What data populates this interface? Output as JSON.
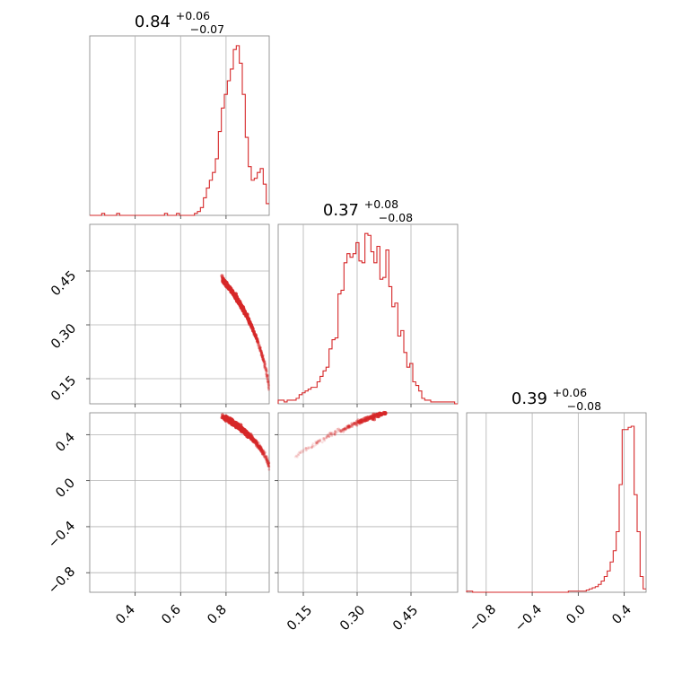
{
  "chart_data": {
    "type": "corner",
    "color": "#d62728",
    "grid": true,
    "parameters": [
      {
        "id": "p0",
        "range": [
          0.2,
          0.99
        ],
        "ticks": [
          0.4,
          0.6,
          0.8
        ],
        "tick_labels": [
          "0.4",
          "0.6",
          "0.8"
        ],
        "title": {
          "median": "0.84",
          "plus": "+0.06",
          "minus": "−0.07"
        },
        "hist": {
          "edges": [
            0.2,
            0.21316,
            0.22633,
            0.2395,
            0.25266,
            0.26583,
            0.279,
            0.29216,
            0.30533,
            0.3185,
            0.33166,
            0.34483,
            0.358,
            0.37116,
            0.38433,
            0.3975,
            0.41066,
            0.42383,
            0.437,
            0.45016,
            0.46333,
            0.4765,
            0.48966,
            0.50283,
            0.516,
            0.52916,
            0.54233,
            0.5555,
            0.56866,
            0.58183,
            0.595,
            0.60816,
            0.62133,
            0.6345,
            0.64766,
            0.66083,
            0.674,
            0.68716,
            0.70033,
            0.7135,
            0.72666,
            0.73983,
            0.753,
            0.76616,
            0.77933,
            0.7925,
            0.80566,
            0.81883,
            0.832,
            0.84516,
            0.85833,
            0.8715,
            0.88466,
            0.89783,
            0.911,
            0.92416,
            0.93733,
            0.9505,
            0.96366,
            0.97683,
            0.99
          ],
          "counts": [
            0,
            0,
            0,
            0,
            1,
            0,
            0,
            0,
            0,
            1,
            0,
            0,
            0,
            0,
            0,
            0,
            0,
            0,
            0,
            0,
            0,
            0,
            0,
            0,
            0,
            1,
            0,
            0,
            0,
            1,
            0,
            0,
            0,
            0,
            0,
            1,
            2,
            4,
            9,
            14,
            18,
            22,
            29,
            43,
            55,
            62,
            69,
            75,
            85,
            87,
            78,
            62,
            40,
            25,
            18,
            19,
            22,
            24,
            16,
            6
          ],
          "ymax": 92
        }
      },
      {
        "id": "p1",
        "range": [
          0.08,
          0.58
        ],
        "ticks": [
          0.15,
          0.3,
          0.45
        ],
        "tick_labels": [
          "0.15",
          "0.30",
          "0.45"
        ],
        "title": {
          "median": "0.37",
          "plus": "+0.08",
          "minus": "−0.08"
        },
        "hist": {
          "edges": [
            0.08,
            0.08833,
            0.09666,
            0.105,
            0.11333,
            0.12166,
            0.13,
            0.13833,
            0.14666,
            0.155,
            0.16333,
            0.17166,
            0.18,
            0.18833,
            0.19666,
            0.205,
            0.21333,
            0.22166,
            0.23,
            0.23833,
            0.24666,
            0.255,
            0.26333,
            0.27166,
            0.28,
            0.28833,
            0.29666,
            0.305,
            0.31333,
            0.32166,
            0.33,
            0.33833,
            0.34666,
            0.355,
            0.36333,
            0.37166,
            0.38,
            0.38833,
            0.39666,
            0.405,
            0.41333,
            0.42166,
            0.43,
            0.43833,
            0.44666,
            0.455,
            0.46333,
            0.47166,
            0.48,
            0.48833,
            0.49666,
            0.505,
            0.51333,
            0.52166,
            0.53,
            0.53833,
            0.54666,
            0.555,
            0.56333,
            0.57166,
            0.58
          ],
          "counts": [
            2,
            2,
            1,
            2,
            2,
            2,
            3,
            5,
            6,
            7,
            8,
            9,
            9,
            12,
            15,
            18,
            20,
            30,
            35,
            36,
            60,
            62,
            77,
            82,
            80,
            82,
            88,
            78,
            77,
            93,
            92,
            83,
            77,
            86,
            68,
            69,
            84,
            64,
            53,
            55,
            37,
            40,
            28,
            20,
            22,
            12,
            10,
            7,
            3,
            2,
            2,
            1,
            1,
            1,
            1,
            1,
            1,
            1,
            1,
            0
          ],
          "ymax": 98
        }
      },
      {
        "id": "p2",
        "range": [
          -0.97,
          0.59
        ],
        "ticks": [
          -0.8,
          -0.4,
          0.0,
          0.4
        ],
        "tick_labels": [
          "−0.8",
          "−0.4",
          "0.0",
          "0.4"
        ],
        "title": {
          "median": "0.39",
          "plus": "+0.06",
          "minus": "−0.08"
        },
        "hist": {
          "edges": [
            -0.97,
            -0.944,
            -0.918,
            -0.892,
            -0.866,
            -0.84,
            -0.814,
            -0.788,
            -0.762,
            -0.736,
            -0.71,
            -0.684,
            -0.658,
            -0.632,
            -0.606,
            -0.58,
            -0.554,
            -0.528,
            -0.502,
            -0.476,
            -0.45,
            -0.424,
            -0.398,
            -0.372,
            -0.346,
            -0.32,
            -0.294,
            -0.268,
            -0.242,
            -0.216,
            -0.19,
            -0.164,
            -0.138,
            -0.112,
            -0.086,
            -0.06,
            -0.034,
            -0.008,
            0.018,
            0.044,
            0.07,
            0.096,
            0.122,
            0.148,
            0.174,
            0.2,
            0.226,
            0.252,
            0.278,
            0.304,
            0.33,
            0.356,
            0.382,
            0.408,
            0.434,
            0.46,
            0.486,
            0.512,
            0.538,
            0.564,
            0.59
          ],
          "counts": [
            1,
            1,
            0,
            0,
            0,
            0,
            0,
            0,
            0,
            0,
            0,
            0,
            0,
            0,
            0,
            0,
            0,
            0,
            0,
            0,
            0,
            0,
            0,
            0,
            0,
            0,
            0,
            0,
            0,
            0,
            0,
            0,
            0,
            0,
            1,
            1,
            1,
            1,
            1,
            1,
            2,
            3,
            4,
            5,
            7,
            10,
            14,
            19,
            27,
            37,
            54,
            96,
            145,
            145,
            147,
            148,
            87,
            54,
            14,
            3
          ],
          "ymax": 160
        }
      }
    ],
    "joint": [
      {
        "x": "p0",
        "y": "p1",
        "shape": "arc_descending_concave"
      },
      {
        "x": "p0",
        "y": "p2",
        "shape": "arc_descending"
      },
      {
        "x": "p1",
        "y": "p2",
        "shape": "arc_ascending"
      }
    ]
  }
}
